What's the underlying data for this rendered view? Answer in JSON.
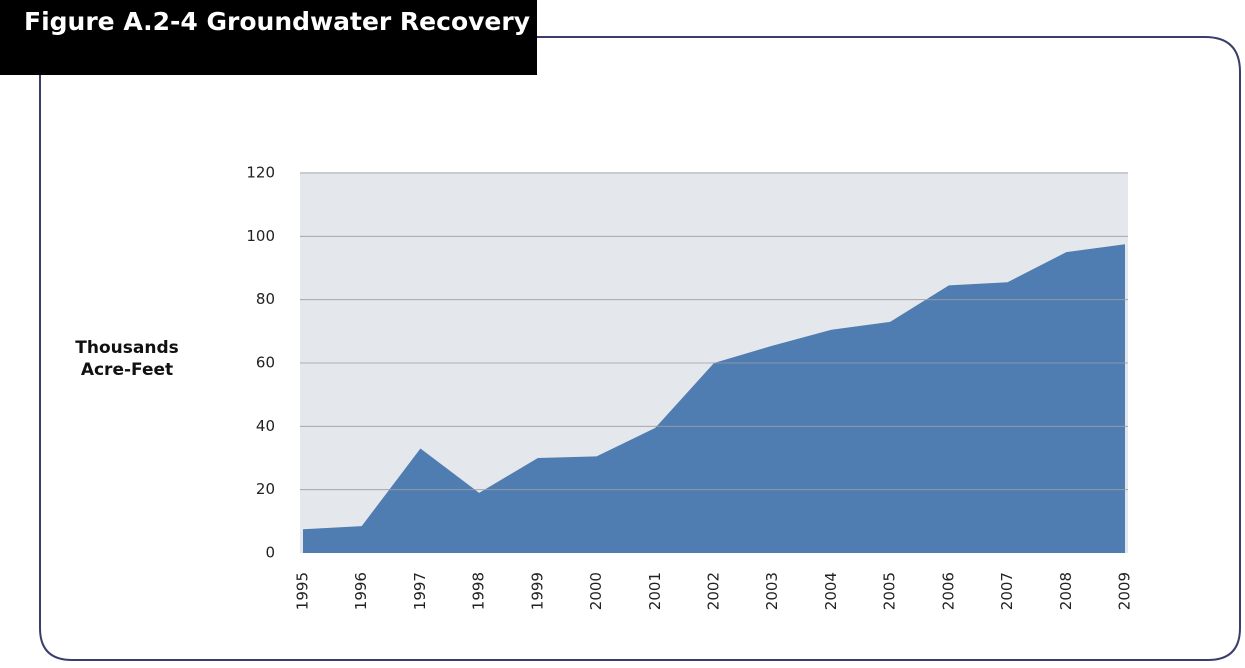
{
  "chart_data": {
    "type": "area",
    "title": "Figure A.2-4  Groundwater Recovery",
    "y_label": "Thousands Acre-Feet",
    "categories": [
      "1995",
      "1996",
      "1997",
      "1998",
      "1999",
      "2000",
      "2001",
      "2002",
      "2003",
      "2004",
      "2005",
      "2006",
      "2007",
      "2008",
      "2009"
    ],
    "values": [
      7.5,
      8.5,
      33,
      19,
      30,
      30.5,
      39.5,
      60,
      65.5,
      70.5,
      73,
      84.5,
      85.5,
      95,
      97.5
    ],
    "color": "#4f7db1",
    "ylim": [
      0,
      120
    ],
    "yticks": [
      0,
      20,
      40,
      60,
      80,
      100,
      120
    ],
    "grid": true
  }
}
